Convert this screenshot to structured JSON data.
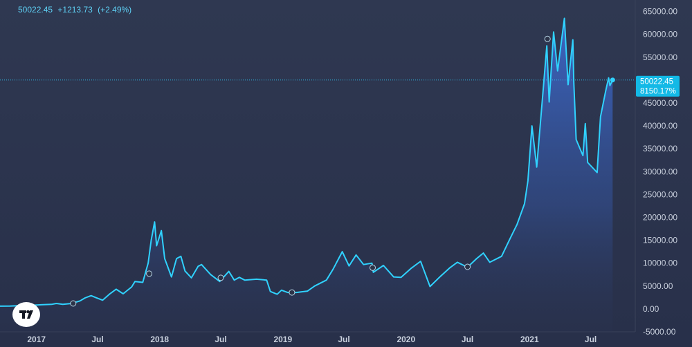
{
  "legend": {
    "last": "50022.45",
    "change": "+1213.73",
    "change_pct": "(+2.49%)"
  },
  "price_badge": {
    "value": "50022.45",
    "percent": "8150.17%"
  },
  "colors": {
    "line": "#30d2ff",
    "badge": "#13b9e6",
    "fill_top": "#3d68c9",
    "fill_bottom": "#2a3352",
    "axis_text": "#c9d0dd",
    "background": "#2b3247"
  },
  "logo": {
    "icon": "tradingview-logo-icon"
  },
  "chart_data": {
    "type": "area",
    "title": "",
    "xlabel": "",
    "ylabel": "",
    "ylim": [
      -5000,
      67500
    ],
    "y_ticks": [
      -5000,
      0,
      5000,
      10000,
      15000,
      20000,
      25000,
      30000,
      35000,
      40000,
      45000,
      50000,
      55000,
      60000,
      65000
    ],
    "y_tick_labels": [
      "-5000.00",
      "0.00",
      "5000.00",
      "10000.00",
      "15000.00",
      "20000.00",
      "25000.00",
      "30000.00",
      "35000.00",
      "40000.00",
      "45000.00",
      "50000.00",
      "55000.00",
      "60000.00",
      "65000.00"
    ],
    "x_ticks": [
      {
        "label": "2017",
        "date": "2017-01-01"
      },
      {
        "label": "Jul",
        "date": "2017-07-01"
      },
      {
        "label": "2018",
        "date": "2018-01-01"
      },
      {
        "label": "Jul",
        "date": "2018-07-01"
      },
      {
        "label": "2019",
        "date": "2019-01-01"
      },
      {
        "label": "Jul",
        "date": "2019-07-01"
      },
      {
        "label": "2020",
        "date": "2020-01-01"
      },
      {
        "label": "Jul",
        "date": "2020-07-01"
      },
      {
        "label": "2021",
        "date": "2021-01-01"
      },
      {
        "label": "Jul",
        "date": "2021-07-01"
      }
    ],
    "xlim": [
      "2016-09-15",
      "2021-11-10"
    ],
    "grid": false,
    "last_value": 50022.45,
    "series": [
      {
        "points": [
          [
            "2016-09-15",
            610
          ],
          [
            "2016-10-15",
            640
          ],
          [
            "2016-11-15",
            720
          ],
          [
            "2016-12-15",
            780
          ],
          [
            "2017-01-15",
            900
          ],
          [
            "2017-02-15",
            1000
          ],
          [
            "2017-03-01",
            1200
          ],
          [
            "2017-03-20",
            1000
          ],
          [
            "2017-04-15",
            1200
          ],
          [
            "2017-05-10",
            1750
          ],
          [
            "2017-05-25",
            2400
          ],
          [
            "2017-06-12",
            2900
          ],
          [
            "2017-06-25",
            2500
          ],
          [
            "2017-07-16",
            1900
          ],
          [
            "2017-08-05",
            3200
          ],
          [
            "2017-08-25",
            4300
          ],
          [
            "2017-09-15",
            3300
          ],
          [
            "2017-10-10",
            4800
          ],
          [
            "2017-10-20",
            6000
          ],
          [
            "2017-11-12",
            5800
          ],
          [
            "2017-11-28",
            10000
          ],
          [
            "2017-12-07",
            15000
          ],
          [
            "2017-12-17",
            19000
          ],
          [
            "2017-12-23",
            13800
          ],
          [
            "2018-01-06",
            17100
          ],
          [
            "2018-01-16",
            11000
          ],
          [
            "2018-02-05",
            7000
          ],
          [
            "2018-02-20",
            11000
          ],
          [
            "2018-03-05",
            11500
          ],
          [
            "2018-03-17",
            8300
          ],
          [
            "2018-04-05",
            6800
          ],
          [
            "2018-04-25",
            9300
          ],
          [
            "2018-05-05",
            9700
          ],
          [
            "2018-06-01",
            7500
          ],
          [
            "2018-06-28",
            6000
          ],
          [
            "2018-07-25",
            8200
          ],
          [
            "2018-08-10",
            6300
          ],
          [
            "2018-08-25",
            6900
          ],
          [
            "2018-09-10",
            6300
          ],
          [
            "2018-10-15",
            6500
          ],
          [
            "2018-11-14",
            6300
          ],
          [
            "2018-11-25",
            3800
          ],
          [
            "2018-12-15",
            3200
          ],
          [
            "2018-12-28",
            4100
          ],
          [
            "2019-01-15",
            3600
          ],
          [
            "2019-02-10",
            3600
          ],
          [
            "2019-03-15",
            3900
          ],
          [
            "2019-04-05",
            5000
          ],
          [
            "2019-05-10",
            6300
          ],
          [
            "2019-05-30",
            8700
          ],
          [
            "2019-06-26",
            12500
          ],
          [
            "2019-07-16",
            9400
          ],
          [
            "2019-08-06",
            11800
          ],
          [
            "2019-08-28",
            9700
          ],
          [
            "2019-09-22",
            10000
          ],
          [
            "2019-09-26",
            8000
          ],
          [
            "2019-10-26",
            9500
          ],
          [
            "2019-11-25",
            7000
          ],
          [
            "2019-12-17",
            6900
          ],
          [
            "2020-01-15",
            8800
          ],
          [
            "2020-02-13",
            10400
          ],
          [
            "2020-03-12",
            4900
          ],
          [
            "2020-04-10",
            7000
          ],
          [
            "2020-05-10",
            9000
          ],
          [
            "2020-06-01",
            10200
          ],
          [
            "2020-07-01",
            9100
          ],
          [
            "2020-07-28",
            11000
          ],
          [
            "2020-08-17",
            12200
          ],
          [
            "2020-09-05",
            10200
          ],
          [
            "2020-10-10",
            11500
          ],
          [
            "2020-11-05",
            15500
          ],
          [
            "2020-11-25",
            18500
          ],
          [
            "2020-12-17",
            23000
          ],
          [
            "2020-12-27",
            28000
          ],
          [
            "2021-01-08",
            40000
          ],
          [
            "2021-01-22",
            31000
          ],
          [
            "2021-02-08",
            46000
          ],
          [
            "2021-02-21",
            57500
          ],
          [
            "2021-02-28",
            45200
          ],
          [
            "2021-03-13",
            60500
          ],
          [
            "2021-03-25",
            52000
          ],
          [
            "2021-04-14",
            63500
          ],
          [
            "2021-04-25",
            49000
          ],
          [
            "2021-05-09",
            58800
          ],
          [
            "2021-05-12",
            49500
          ],
          [
            "2021-05-19",
            37000
          ],
          [
            "2021-06-08",
            33500
          ],
          [
            "2021-06-15",
            40500
          ],
          [
            "2021-06-22",
            32000
          ],
          [
            "2021-07-20",
            29800
          ],
          [
            "2021-07-30",
            42000
          ],
          [
            "2021-08-14",
            47500
          ],
          [
            "2021-08-23",
            50500
          ],
          [
            "2021-08-27",
            48800
          ],
          [
            "2021-09-04",
            50022.45
          ]
        ]
      }
    ],
    "markers": [
      [
        "2017-04-20",
        1200
      ],
      [
        "2017-12-01",
        7700
      ],
      [
        "2018-07-01",
        6800
      ],
      [
        "2019-01-28",
        3600
      ],
      [
        "2019-09-24",
        9000
      ],
      [
        "2020-07-01",
        9200
      ],
      [
        "2021-02-23",
        59000
      ],
      [
        "2021-09-04",
        50022.45
      ]
    ]
  }
}
